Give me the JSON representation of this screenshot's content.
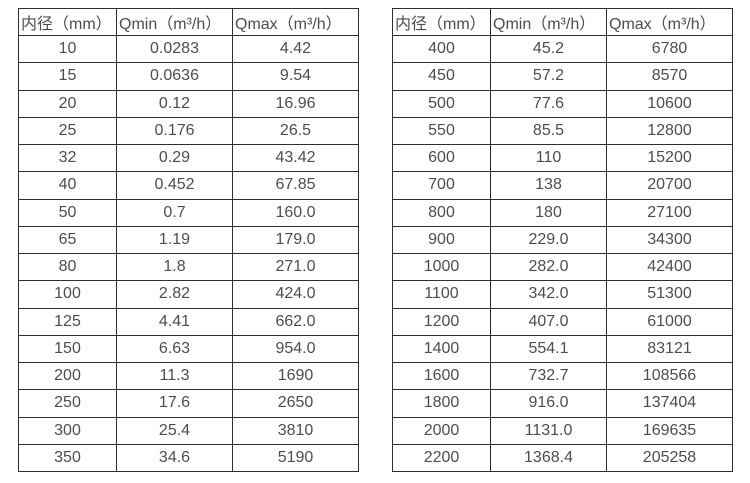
{
  "colors": {
    "background": "#ffffff",
    "border": "#2f2f2f",
    "text": "#4d4d4d"
  },
  "tables": [
    {
      "id": "left",
      "headers": [
        "内径（mm）",
        "Qmin（m³/h）",
        "Qmax（m³/h）"
      ],
      "rows": [
        [
          "10",
          "0.0283",
          "4.42"
        ],
        [
          "15",
          "0.0636",
          "9.54"
        ],
        [
          "20",
          "0.12",
          "16.96"
        ],
        [
          "25",
          "0.176",
          "26.5"
        ],
        [
          "32",
          "0.29",
          "43.42"
        ],
        [
          "40",
          "0.452",
          "67.85"
        ],
        [
          "50",
          "0.7",
          "160.0"
        ],
        [
          "65",
          "1.19",
          "179.0"
        ],
        [
          "80",
          "1.8",
          "271.0"
        ],
        [
          "100",
          "2.82",
          "424.0"
        ],
        [
          "125",
          "4.41",
          "662.0"
        ],
        [
          "150",
          "6.63",
          "954.0"
        ],
        [
          "200",
          "11.3",
          "1690"
        ],
        [
          "250",
          "17.6",
          "2650"
        ],
        [
          "300",
          "25.4",
          "3810"
        ],
        [
          "350",
          "34.6",
          "5190"
        ]
      ]
    },
    {
      "id": "right",
      "headers": [
        "内径（mm）",
        "Qmin（m³/h）",
        "Qmax（m³/h）"
      ],
      "rows": [
        [
          "400",
          "45.2",
          "6780"
        ],
        [
          "450",
          "57.2",
          "8570"
        ],
        [
          "500",
          "77.6",
          "10600"
        ],
        [
          "550",
          "85.5",
          "12800"
        ],
        [
          "600",
          "110",
          "15200"
        ],
        [
          "700",
          "138",
          "20700"
        ],
        [
          "800",
          "180",
          "27100"
        ],
        [
          "900",
          "229.0",
          "34300"
        ],
        [
          "1000",
          "282.0",
          "42400"
        ],
        [
          "1100",
          "342.0",
          "51300"
        ],
        [
          "1200",
          "407.0",
          "61000"
        ],
        [
          "1400",
          "554.1",
          "83121"
        ],
        [
          "1600",
          "732.7",
          "108566"
        ],
        [
          "1800",
          "916.0",
          "137404"
        ],
        [
          "2000",
          "1131.0",
          "169635"
        ],
        [
          "2200",
          "1368.4",
          "205258"
        ]
      ]
    }
  ]
}
